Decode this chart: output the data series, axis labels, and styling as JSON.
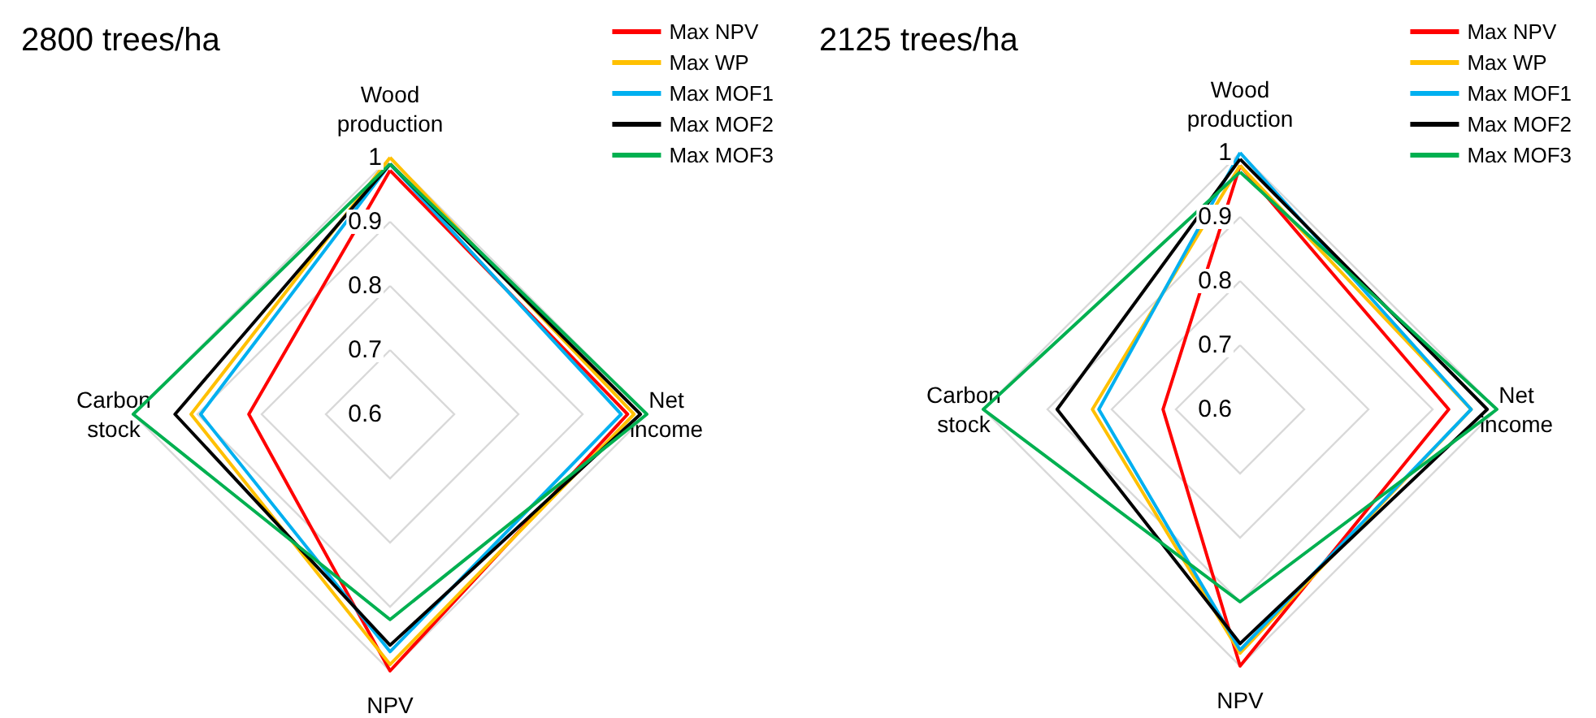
{
  "chart_data": [
    {
      "type": "radar",
      "title": "2800 trees/ha",
      "categories": [
        "Wood production",
        "Net income",
        "NPV",
        "Carbon stock"
      ],
      "ylim": [
        0.6,
        1
      ],
      "yticks": [
        0.6,
        0.7,
        0.8,
        0.9,
        1
      ],
      "grid": true,
      "legend": "top right",
      "marker": "none",
      "line_style": "solid",
      "series": [
        {
          "name": "Max NPV",
          "color": "#ff0000",
          "values": [
            0.98,
            0.97,
            1.0,
            0.82
          ]
        },
        {
          "name": "Max WP",
          "color": "#ffc000",
          "values": [
            1.0,
            0.98,
            0.99,
            0.91
          ]
        },
        {
          "name": "Max MOF1",
          "color": "#00b0f0",
          "values": [
            0.99,
            0.96,
            0.97,
            0.895
          ]
        },
        {
          "name": "Max MOF2",
          "color": "#000000",
          "values": [
            0.99,
            0.99,
            0.96,
            0.935
          ]
        },
        {
          "name": "Max MOF3",
          "color": "#00b050",
          "values": [
            0.99,
            1.0,
            0.92,
            1.0
          ]
        }
      ]
    },
    {
      "type": "radar",
      "title": "2125 trees/ha",
      "categories": [
        "Wood production",
        "Net income",
        "NPV",
        "Carbon stock"
      ],
      "ylim": [
        0.6,
        1
      ],
      "yticks": [
        0.6,
        0.7,
        0.8,
        0.9,
        1
      ],
      "grid": true,
      "legend": "top right",
      "marker": "none",
      "line_style": "solid",
      "series": [
        {
          "name": "Max NPV",
          "color": "#ff0000",
          "values": [
            0.98,
            0.925,
            1.0,
            0.72
          ]
        },
        {
          "name": "Max WP",
          "color": "#ffc000",
          "values": [
            0.98,
            0.96,
            0.98,
            0.83
          ]
        },
        {
          "name": "Max MOF1",
          "color": "#00b0f0",
          "values": [
            1.0,
            0.96,
            0.975,
            0.82
          ]
        },
        {
          "name": "Max MOF2",
          "color": "#000000",
          "values": [
            0.99,
            0.985,
            0.965,
            0.885
          ]
        },
        {
          "name": "Max MOF3",
          "color": "#00b050",
          "values": [
            0.97,
            1.0,
            0.9,
            1.0
          ]
        }
      ]
    }
  ]
}
